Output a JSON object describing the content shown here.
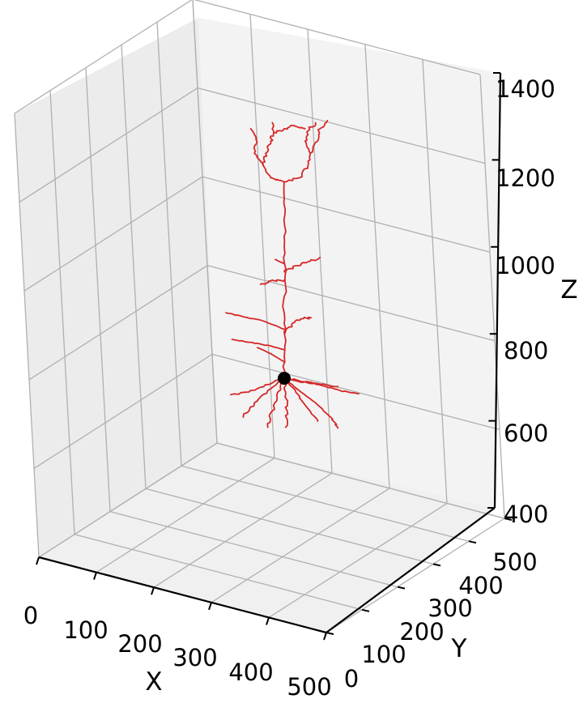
{
  "chart_data": {
    "type": "3d-line",
    "title": "",
    "xlabel": "X",
    "ylabel": "Y",
    "zlabel": "Z",
    "xlim": [
      0,
      500
    ],
    "ylim": [
      0,
      500
    ],
    "zlim": [
      400,
      1400
    ],
    "x_ticks": [
      "0",
      "100",
      "200",
      "300",
      "400",
      "500"
    ],
    "y_ticks": [
      "0",
      "100",
      "200",
      "300",
      "400",
      "500"
    ],
    "z_ticks": [
      "400",
      "600",
      "800",
      "1000",
      "1200",
      "1400"
    ],
    "grid": true,
    "pane_color": "#f2f2f2",
    "grid_color": "#b0b0b0",
    "series": [
      {
        "kind": "neuron-morphology",
        "color": "#d62728",
        "soma": {
          "x": 250,
          "y": 250,
          "z": 720,
          "color": "#000000"
        },
        "branches": [
          [
            [
              250,
              250,
              720
            ],
            [
              251,
              250,
              800
            ],
            [
              250,
              251,
              880
            ],
            [
              251,
              250,
              960
            ],
            [
              250,
              250,
              1040
            ],
            [
              251,
              250,
              1120
            ],
            [
              250,
              250,
              1200
            ]
          ],
          [
            [
              250,
              250,
              1200
            ],
            [
              232,
              250,
              1210
            ],
            [
              222,
              250,
              1240
            ],
            [
              225,
              250,
              1270
            ],
            [
              232,
              250,
              1300
            ],
            [
              236,
              250,
              1320
            ],
            [
              234,
              250,
              1345
            ]
          ],
          [
            [
              250,
              250,
              1200
            ],
            [
              270,
              250,
              1210
            ],
            [
              282,
              250,
              1240
            ],
            [
              285,
              250,
              1270
            ],
            [
              278,
              250,
              1300
            ],
            [
              282,
              250,
              1325
            ],
            [
              292,
              250,
              1345
            ]
          ],
          [
            [
              222,
              250,
              1240
            ],
            [
              210,
              250,
              1270
            ],
            [
              212,
              250,
              1305
            ],
            [
              205,
              250,
              1330
            ]
          ],
          [
            [
              285,
              250,
              1270
            ],
            [
              295,
              250,
              1300
            ],
            [
              298,
              250,
              1330
            ],
            [
              308,
              250,
              1350
            ]
          ],
          [
            [
              236,
              250,
              1320
            ],
            [
              250,
              250,
              1330
            ],
            [
              262,
              250,
              1338
            ],
            [
              278,
              250,
              1330
            ]
          ],
          [
            [
              250,
              250,
              980
            ],
            [
              265,
              250,
              995
            ],
            [
              282,
              250,
              1005
            ],
            [
              298,
              250,
              1015
            ]
          ],
          [
            [
              250,
              250,
              960
            ],
            [
              232,
              250,
              958
            ],
            [
              218,
              250,
              950
            ]
          ],
          [
            [
              250,
              250,
              1000
            ],
            [
              238,
              250,
              1010
            ]
          ],
          [
            [
              250,
              250,
              840
            ],
            [
              222,
              250,
              860
            ],
            [
              196,
              250,
              870
            ],
            [
              172,
              250,
              880
            ]
          ],
          [
            [
              250,
              250,
              830
            ],
            [
              260,
              250,
              852
            ],
            [
              272,
              250,
              865
            ],
            [
              286,
              250,
              868
            ]
          ],
          [
            [
              250,
              250,
              790
            ],
            [
              230,
              250,
              800
            ],
            [
              206,
              250,
              808
            ],
            [
              180,
              250,
              815
            ]
          ],
          [
            [
              250,
              250,
              760
            ],
            [
              232,
              250,
              780
            ],
            [
              214,
              250,
              795
            ]
          ],
          [
            [
              250,
              250,
              720
            ],
            [
              230,
              250,
              705
            ],
            [
              205,
              250,
              690
            ],
            [
              178,
              250,
              680
            ]
          ],
          [
            [
              250,
              250,
              720
            ],
            [
              228,
              250,
              690
            ],
            [
              210,
              250,
              660
            ],
            [
              195,
              250,
              625
            ]
          ],
          [
            [
              250,
              250,
              720
            ],
            [
              240,
              250,
              680
            ],
            [
              234,
              250,
              640
            ],
            [
              228,
              250,
              600
            ]
          ],
          [
            [
              250,
              250,
              720
            ],
            [
              252,
              250,
              680
            ],
            [
              254,
              250,
              640
            ],
            [
              252,
              250,
              600
            ]
          ],
          [
            [
              250,
              250,
              720
            ],
            [
              265,
              250,
              690
            ],
            [
              280,
              250,
              650
            ],
            [
              295,
              250,
              615
            ]
          ],
          [
            [
              250,
              250,
              720
            ],
            [
              270,
              250,
              690
            ],
            [
              292,
              250,
              660
            ],
            [
              315,
              250,
              620
            ],
            [
              322,
              250,
              598
            ]
          ],
          [
            [
              250,
              250,
              720
            ],
            [
              275,
              250,
              710
            ],
            [
              300,
              250,
              705
            ],
            [
              322,
              250,
              700
            ]
          ],
          [
            [
              250,
              250,
              720
            ],
            [
              280,
              250,
              712
            ],
            [
              305,
              250,
              700
            ],
            [
              330,
              250,
              688
            ],
            [
              350,
              250,
              682
            ]
          ]
        ]
      }
    ]
  }
}
